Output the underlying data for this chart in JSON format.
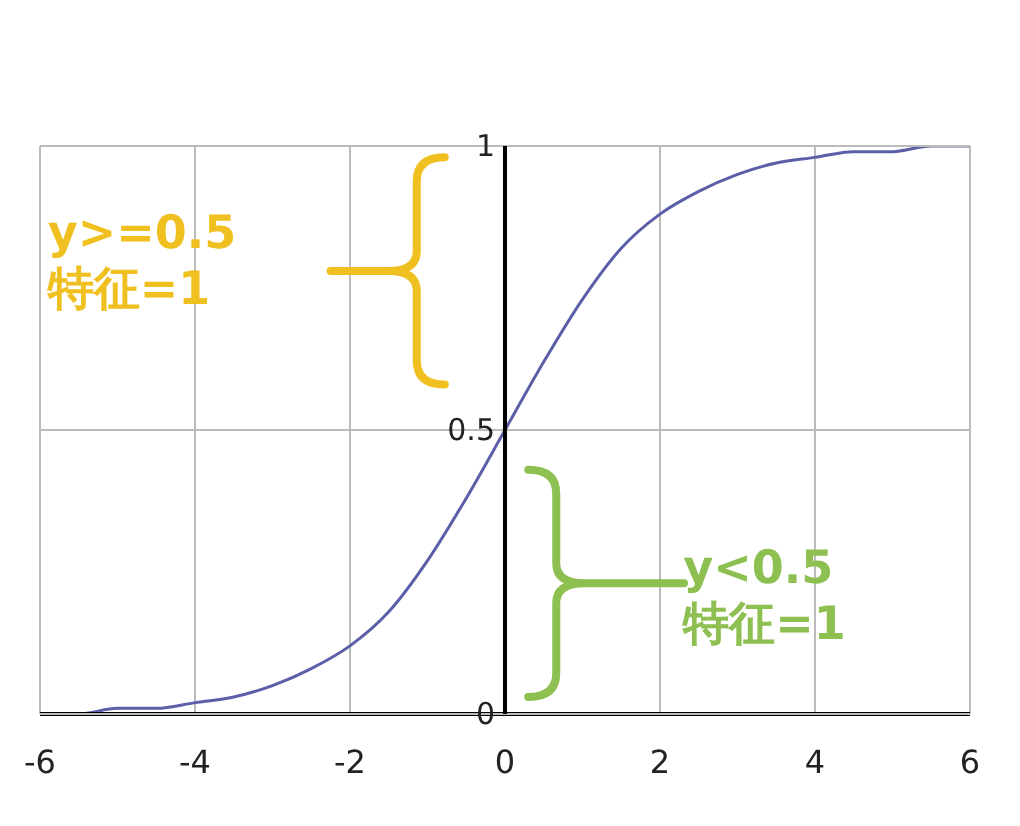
{
  "chart_data": {
    "type": "line",
    "x": [
      -6,
      -5.5,
      -5,
      -4.5,
      -4,
      -3.5,
      -3,
      -2.5,
      -2,
      -1.5,
      -1,
      -0.5,
      0,
      0.5,
      1,
      1.5,
      2,
      2.5,
      3,
      3.5,
      4,
      4.5,
      5,
      5.5,
      6
    ],
    "series": [
      {
        "color": "#5a5fa8",
        "values": [
          0.0,
          0.0,
          0.01,
          0.01,
          0.02,
          0.03,
          0.05,
          0.08,
          0.12,
          0.18,
          0.27,
          0.38,
          0.5,
          0.62,
          0.73,
          0.82,
          0.88,
          0.92,
          0.95,
          0.97,
          0.98,
          0.99,
          0.99,
          1.0,
          1.0
        ]
      }
    ],
    "xlim": [
      -6,
      6
    ],
    "xticks": [
      -6,
      -4,
      -2,
      0,
      2,
      4,
      6
    ],
    "ylim": [
      0,
      1
    ],
    "yticks": [
      0,
      0.5,
      1
    ],
    "grid": true,
    "marker": "none",
    "line_style": "solid",
    "legend": false,
    "annotations": [
      "y>=0.5\n特征=1",
      "y<0.5\n特征=1"
    ]
  }
}
